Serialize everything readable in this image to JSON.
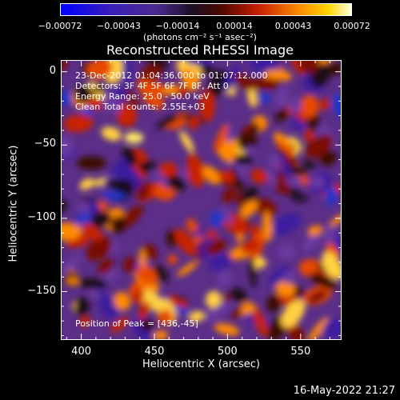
{
  "chart_data": {
    "type": "heatmap",
    "title": "Reconstructed RHESSI Image",
    "xlabel": "Heliocentric X (arcsec)",
    "ylabel": "Heliocentric Y (arcsec)",
    "xlim": [
      386,
      578
    ],
    "ylim": [
      -183,
      8
    ],
    "x_ticks": [
      "400",
      "450",
      "500",
      "550"
    ],
    "x_tick_values": [
      400,
      450,
      500,
      550
    ],
    "y_ticks": [
      "0",
      "−50",
      "−100",
      "−150"
    ],
    "y_tick_values": [
      0,
      -50,
      -100,
      -150
    ],
    "colorbar": {
      "ticks": [
        "−0.00072",
        "−0.00043",
        "−0.00014",
        "0.00014",
        "0.00043",
        "0.00072"
      ],
      "tick_values": [
        -0.00072,
        -0.00043,
        -0.00014,
        0.00014,
        0.00043,
        0.00072
      ],
      "range": [
        -0.00072,
        0.00072
      ],
      "units": "(photons cm⁻² s⁻¹ asec⁻²)"
    },
    "annotations": [
      "23-Dec-2012 01:04:36.000 to 01:07:12.000",
      "Detectors: 3F 4F 5F 6F 7F 8F, Att 0",
      "Energy Range: 25.0 - 50.0 keV",
      "Clean     Total counts: 2.55E+03"
    ],
    "peak_label": "Position of Peak = [436,-45]",
    "peak": [
      436,
      -45
    ]
  },
  "timestamp": "16-May-2022 21:27"
}
